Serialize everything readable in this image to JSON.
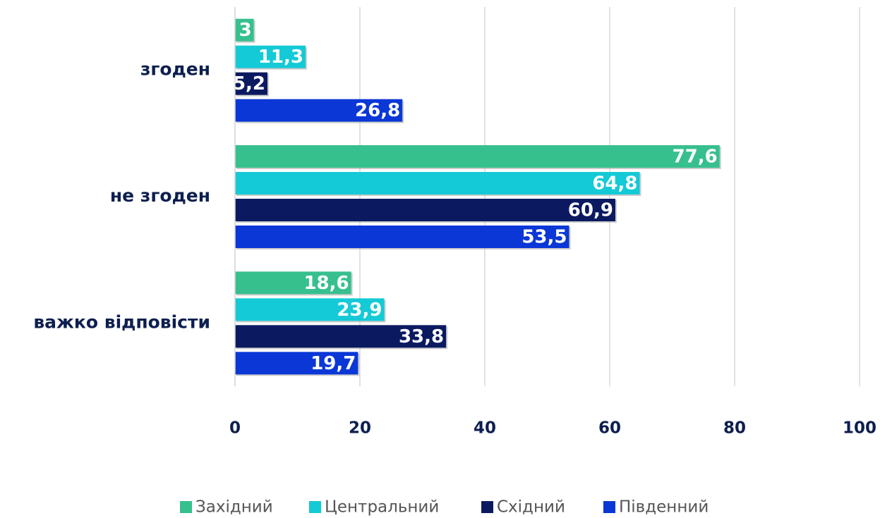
{
  "chart_data": {
    "type": "bar",
    "orientation": "horizontal",
    "categories": [
      "згоден",
      "не згоден",
      "важко відповісти"
    ],
    "series": [
      {
        "name": "Західний",
        "color": "#36c08e",
        "values": [
          3,
          77.6,
          18.6
        ],
        "value_labels": [
          "3",
          "77,6",
          "18,6"
        ]
      },
      {
        "name": "Центральний",
        "color": "#14cad6",
        "values": [
          11.3,
          64.8,
          23.9
        ],
        "value_labels": [
          "11,3",
          "64,8",
          "23,9"
        ]
      },
      {
        "name": "Східний",
        "color": "#0b1a60",
        "values": [
          5.2,
          60.9,
          33.8
        ],
        "value_labels": [
          "5,2",
          "60,9",
          "33,8"
        ]
      },
      {
        "name": "Південний",
        "color": "#0a37d6",
        "values": [
          26.8,
          53.5,
          19.7
        ],
        "value_labels": [
          "26,8",
          "53,5",
          "19,7"
        ]
      }
    ],
    "xlim": [
      0,
      100
    ],
    "xticks": [
      0,
      20,
      40,
      60,
      80,
      100
    ],
    "grid": true,
    "legend": "bottom"
  }
}
